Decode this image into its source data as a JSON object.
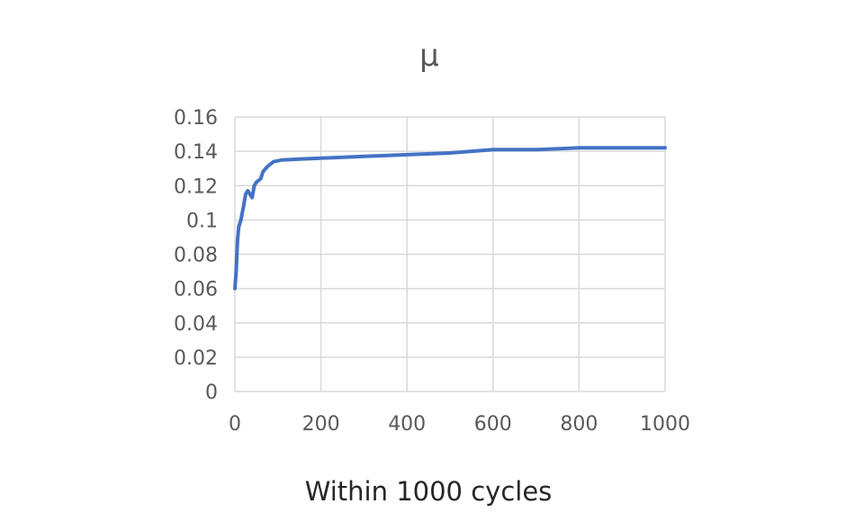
{
  "chart_data": {
    "type": "line",
    "title": "μ",
    "xlabel": "Within 1000 cycles",
    "ylabel": "",
    "xlim": [
      0,
      1000
    ],
    "ylim": [
      0,
      0.16
    ],
    "x_ticks": [
      0,
      200,
      400,
      600,
      800,
      1000
    ],
    "x_tick_labels": [
      "0",
      "200",
      "400",
      "600",
      "800",
      "1000"
    ],
    "y_ticks": [
      0,
      0.02,
      0.04,
      0.06,
      0.08,
      0.1,
      0.12,
      0.14,
      0.16
    ],
    "y_tick_labels": [
      "0",
      "0.02",
      "0.04",
      "0.06",
      "0.08",
      "0.1",
      "0.12",
      "0.14",
      "0.16"
    ],
    "grid": true,
    "legend": "none",
    "series": [
      {
        "name": "μ",
        "color": "#4472c4",
        "x": [
          0,
          3,
          6,
          9,
          14,
          20,
          25,
          30,
          35,
          40,
          45,
          50,
          60,
          65,
          75,
          90,
          110,
          150,
          200,
          300,
          400,
          500,
          550,
          600,
          700,
          800,
          900,
          1000
        ],
        "y": [
          0.06,
          0.07,
          0.088,
          0.096,
          0.1,
          0.108,
          0.115,
          0.117,
          0.115,
          0.113,
          0.12,
          0.122,
          0.124,
          0.128,
          0.131,
          0.134,
          0.135,
          0.1355,
          0.136,
          0.137,
          0.138,
          0.139,
          0.14,
          0.141,
          0.141,
          0.142,
          0.142,
          0.142
        ]
      }
    ]
  }
}
